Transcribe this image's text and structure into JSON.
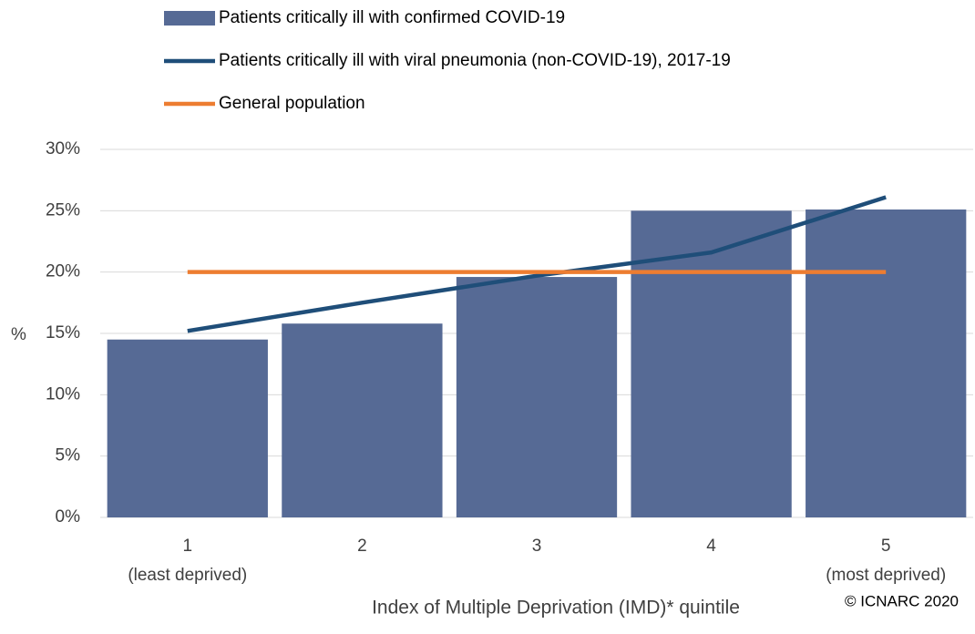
{
  "chart_data": {
    "type": "bar",
    "categories": [
      "1",
      "2",
      "3",
      "4",
      "5"
    ],
    "category_notes": [
      "(least deprived)",
      null,
      null,
      null,
      "(most deprived)"
    ],
    "series": [
      {
        "name": "Patients critically ill with confirmed COVID-19",
        "type": "bar",
        "color": "#566a95",
        "values": [
          14.5,
          15.8,
          19.6,
          25.0,
          25.1
        ]
      },
      {
        "name": "Patients critically ill with viral pneumonia (non-COVID-19), 2017-19",
        "type": "line",
        "color": "#1f4e79",
        "values": [
          15.2,
          17.5,
          19.7,
          21.6,
          26.1
        ]
      },
      {
        "name": "General population",
        "type": "line",
        "color": "#ed7d31",
        "values": [
          20,
          20,
          20,
          20,
          20
        ]
      }
    ],
    "ylim": [
      0,
      30
    ],
    "yticks": [
      {
        "value": 0,
        "label": "0%"
      },
      {
        "value": 5,
        "label": "5%"
      },
      {
        "value": 10,
        "label": "10%"
      },
      {
        "value": 15,
        "label": "15%"
      },
      {
        "value": 20,
        "label": "20%"
      },
      {
        "value": 25,
        "label": "25%"
      },
      {
        "value": 30,
        "label": "30%"
      }
    ],
    "y_label": "%",
    "x_label": "Index of Multiple Deprivation (IMD)* quintile",
    "source": "© ICNARC 2020",
    "grid": true
  }
}
